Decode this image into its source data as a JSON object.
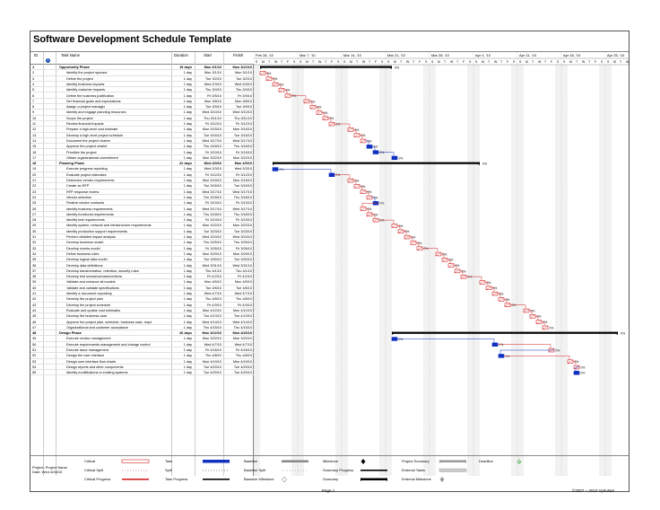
{
  "title": "Software Development Schedule Template",
  "columns": {
    "id": "ID",
    "info": "i",
    "name": "Task Name",
    "duration": "Duration",
    "start": "Start",
    "finish": "Finish"
  },
  "weeks": [
    "Feb 28, '10",
    "Mar 7, '10",
    "Mar 14, '10",
    "Mar 21, '10",
    "Mar 28, '10",
    "Apr 4, '10",
    "Apr 11, '10",
    "Apr 18, '10",
    "Apr 25, '10"
  ],
  "day_letters": [
    "S",
    "M",
    "T",
    "W",
    "T",
    "F",
    "S"
  ],
  "tasks": [
    {
      "id": "1",
      "name": "Opportunity Phase",
      "dur": "15 days",
      "start": "Mon 3/1/10",
      "finish": "Mon 3/22/10",
      "summary": true
    },
    {
      "id": "2",
      "name": "Identify the project sponsor",
      "dur": "1 day",
      "start": "Mon 3/1/10",
      "finish": "Mon 3/1/10"
    },
    {
      "id": "3",
      "name": "Define the project",
      "dur": "1 day",
      "start": "Tue 3/2/10",
      "finish": "Tue 3/2/10"
    },
    {
      "id": "4",
      "name": "Identify business impacts",
      "dur": "1 day",
      "start": "Wed 3/3/10",
      "finish": "Wed 3/3/10"
    },
    {
      "id": "5",
      "name": "Identify customer impacts",
      "dur": "1 day",
      "start": "Thu 3/4/10",
      "finish": "Thu 3/4/10"
    },
    {
      "id": "6",
      "name": "Define the business justification",
      "dur": "1 day",
      "start": "Fri 3/5/10",
      "finish": "Fri 3/5/10"
    },
    {
      "id": "7",
      "name": "Set financial goals and expectations",
      "dur": "1 day",
      "start": "Mon 3/8/10",
      "finish": "Mon 3/8/10"
    },
    {
      "id": "8",
      "name": "Assign a project manager",
      "dur": "1 day",
      "start": "Tue 3/9/10",
      "finish": "Tue 3/9/10"
    },
    {
      "id": "9",
      "name": "Identify and engage planning resources",
      "dur": "1 day",
      "start": "Wed 3/10/10",
      "finish": "Wed 3/10/10"
    },
    {
      "id": "10",
      "name": "Scope the project",
      "dur": "1 day",
      "start": "Thu 3/11/10",
      "finish": "Thu 3/11/10"
    },
    {
      "id": "11",
      "name": "Review financial impacts",
      "dur": "1 day",
      "start": "Fri 3/12/10",
      "finish": "Fri 3/12/10"
    },
    {
      "id": "12",
      "name": "Prepare a high-level cost estimate",
      "dur": "1 day",
      "start": "Mon 3/15/10",
      "finish": "Mon 3/15/10"
    },
    {
      "id": "13",
      "name": "Develop a high-level project schedule",
      "dur": "1 day",
      "start": "Tue 3/16/10",
      "finish": "Tue 3/16/10"
    },
    {
      "id": "14",
      "name": "Document the project charter",
      "dur": "1 day",
      "start": "Wed 3/17/10",
      "finish": "Wed 3/17/10"
    },
    {
      "id": "15",
      "name": "Approve the project charter",
      "dur": "1 day",
      "start": "Thu 3/18/10",
      "finish": "Thu 3/18/10"
    },
    {
      "id": "16",
      "name": "Prioritize the project",
      "dur": "1 day",
      "start": "Fri 3/19/10",
      "finish": "Fri 3/19/10"
    },
    {
      "id": "17",
      "name": "Obtain organizational commitment",
      "dur": "1 day",
      "start": "Mon 3/22/10",
      "finish": "Mon 3/22/10"
    },
    {
      "id": "18",
      "name": "Planning Phase",
      "dur": "22 days",
      "start": "Wed 3/3/10",
      "finish": "Mon 4/5/10",
      "summary": true
    },
    {
      "id": "19",
      "name": "Execute progress reporting",
      "dur": "1 day",
      "start": "Wed 3/3/10",
      "finish": "Wed 3/3/10"
    },
    {
      "id": "20",
      "name": "Evaluate project estimates",
      "dur": "1 day",
      "start": "Fri 3/12/10",
      "finish": "Fri 3/12/10"
    },
    {
      "id": "21",
      "name": "Determine vendor requirements",
      "dur": "1 day",
      "start": "Mon 3/15/10",
      "finish": "Mon 3/15/10"
    },
    {
      "id": "22",
      "name": "Create an RFP",
      "dur": "1 day",
      "start": "Tue 3/16/10",
      "finish": "Tue 3/16/10"
    },
    {
      "id": "23",
      "name": "RFP response review",
      "dur": "1 day",
      "start": "Wed 3/17/10",
      "finish": "Wed 3/17/10"
    },
    {
      "id": "24",
      "name": "Vendor selection",
      "dur": "1 day",
      "start": "Thu 3/18/10",
      "finish": "Thu 3/18/10"
    },
    {
      "id": "25",
      "name": "Finalize vendor contracts",
      "dur": "1 day",
      "start": "Fri 3/19/10",
      "finish": "Fri 3/19/10"
    },
    {
      "id": "26",
      "name": "Identify business requirements",
      "dur": "1 day",
      "start": "Wed 3/17/10",
      "finish": "Wed 3/17/10"
    },
    {
      "id": "27",
      "name": "Identify functional requirements",
      "dur": "1 day",
      "start": "Thu 3/18/10",
      "finish": "Thu 3/18/10"
    },
    {
      "id": "28",
      "name": "Identify test requirements",
      "dur": "1 day",
      "start": "Fri 3/19/10",
      "finish": "Fri 3/19/10"
    },
    {
      "id": "29",
      "name": "Identify system, network and infrastructure requirements",
      "dur": "1 day",
      "start": "Mon 3/22/10",
      "finish": "Mon 3/22/10"
    },
    {
      "id": "30",
      "name": "Identify production support requirements",
      "dur": "1 day",
      "start": "Tue 3/23/10",
      "finish": "Tue 3/23/10"
    },
    {
      "id": "31",
      "name": "Perform detailed impact analysis",
      "dur": "1 day",
      "start": "Wed 3/24/10",
      "finish": "Wed 3/24/10"
    },
    {
      "id": "32",
      "name": "Develop business model",
      "dur": "1 day",
      "start": "Thu 3/25/10",
      "finish": "Thu 3/25/10"
    },
    {
      "id": "33",
      "name": "Develop events model",
      "dur": "1 day",
      "start": "Fri 3/26/10",
      "finish": "Fri 3/26/10"
    },
    {
      "id": "34",
      "name": "Define business rules",
      "dur": "1 day",
      "start": "Mon 3/29/10",
      "finish": "Mon 3/29/10"
    },
    {
      "id": "35",
      "name": "Develop logical data model",
      "dur": "1 day",
      "start": "Tue 3/30/10",
      "finish": "Tue 3/30/10"
    },
    {
      "id": "36",
      "name": "Develop data definitions",
      "dur": "1 day",
      "start": "Wed 3/31/10",
      "finish": "Wed 3/31/10"
    },
    {
      "id": "37",
      "name": "Develop transformation, retention, security rules",
      "dur": "1 day",
      "start": "Thu 4/1/10",
      "finish": "Thu 4/1/10"
    },
    {
      "id": "38",
      "name": "Develop test scenarios/cases/criteria",
      "dur": "1 day",
      "start": "Fri 4/2/10",
      "finish": "Fri 4/2/10"
    },
    {
      "id": "39",
      "name": "Validate and enhance all models",
      "dur": "1 day",
      "start": "Mon 4/5/10",
      "finish": "Mon 4/5/10"
    },
    {
      "id": "40",
      "name": "Validate and validate specifications",
      "dur": "1 day",
      "start": "Tue 4/6/10",
      "finish": "Tue 4/6/10"
    },
    {
      "id": "41",
      "name": "Identify a document repository",
      "dur": "1 day",
      "start": "Wed 4/7/10",
      "finish": "Wed 4/7/10"
    },
    {
      "id": "42",
      "name": "Develop the project plan",
      "dur": "1 day",
      "start": "Thu 4/8/10",
      "finish": "Thu 4/8/10"
    },
    {
      "id": "43",
      "name": "Develop the project schedule",
      "dur": "1 day",
      "start": "Fri 4/9/10",
      "finish": "Fri 4/9/10"
    },
    {
      "id": "44",
      "name": "Evaluate and update cost estimates",
      "dur": "1 day",
      "start": "Mon 4/12/10",
      "finish": "Mon 4/12/10"
    },
    {
      "id": "45",
      "name": "Develop the business case",
      "dur": "1 day",
      "start": "Tue 4/13/10",
      "finish": "Tue 4/13/10"
    },
    {
      "id": "46",
      "name": "Approve the project plan, schedule, business case, requi",
      "dur": "1 day",
      "start": "Wed 4/14/10",
      "finish": "Wed 4/14/10"
    },
    {
      "id": "47",
      "name": "Organizational and customer acceptance",
      "dur": "1 day",
      "start": "Thu 4/15/10",
      "finish": "Thu 4/15/10"
    },
    {
      "id": "48",
      "name": "Design Phase",
      "dur": "26 days",
      "start": "Mon 3/22/10",
      "finish": "Mon 4/26/10",
      "summary": true
    },
    {
      "id": "49",
      "name": "Execute vendor management",
      "dur": "1 day",
      "start": "Mon 3/22/10",
      "finish": "Mon 3/22/10"
    },
    {
      "id": "50",
      "name": "Execute requirements management and change control",
      "dur": "1 day",
      "start": "Wed 4/7/10",
      "finish": "Wed 4/7/10"
    },
    {
      "id": "51",
      "name": "Execute issue management",
      "dur": "1 day",
      "start": "Fri 4/16/10",
      "finish": "Fri 4/16/10"
    },
    {
      "id": "52",
      "name": "Design the user interface",
      "dur": "1 day",
      "start": "Thu 4/8/10",
      "finish": "Thu 4/8/10"
    },
    {
      "id": "53",
      "name": "Design user interface flow charts",
      "dur": "1 day",
      "start": "Mon 4/19/10",
      "finish": "Mon 4/19/10"
    },
    {
      "id": "54",
      "name": "Design reports and other components",
      "dur": "1 day",
      "start": "Tue 4/20/10",
      "finish": "Tue 4/20/10"
    },
    {
      "id": "55",
      "name": "Identify modifications to existing systems",
      "dur": "1 day",
      "start": "Tue 4/20/10",
      "finish": "Tue 4/20/10"
    }
  ],
  "bars": [
    {
      "kind": "summary",
      "day": 1,
      "len": 21,
      "pct": "0%"
    },
    {
      "kind": "crit",
      "day": 1,
      "pct": "0%"
    },
    {
      "kind": "crit",
      "day": 2,
      "pct": "0%"
    },
    {
      "kind": "crit",
      "day": 3,
      "pct": "0%"
    },
    {
      "kind": "crit",
      "day": 4,
      "pct": "0%"
    },
    {
      "kind": "crit",
      "day": 5,
      "pct": "0%"
    },
    {
      "kind": "crit",
      "day": 8,
      "pct": "0%"
    },
    {
      "kind": "crit",
      "day": 9,
      "pct": "0%"
    },
    {
      "kind": "crit",
      "day": 10,
      "pct": "0%"
    },
    {
      "kind": "crit",
      "day": 11,
      "pct": "0%"
    },
    {
      "kind": "crit",
      "day": 12,
      "pct": "0%"
    },
    {
      "kind": "crit",
      "day": 15,
      "pct": "0%"
    },
    {
      "kind": "crit",
      "day": 16,
      "pct": "0%"
    },
    {
      "kind": "crit",
      "day": 17,
      "pct": "0%"
    },
    {
      "kind": "task",
      "day": 18,
      "pct": "0%"
    },
    {
      "kind": "task",
      "day": 19,
      "pct": "0%"
    },
    {
      "kind": "task",
      "day": 22,
      "pct": "0%"
    },
    {
      "kind": "summary",
      "day": 3,
      "len": 33,
      "pct": "0%"
    },
    {
      "kind": "task",
      "day": 3,
      "pct": "0%"
    },
    {
      "kind": "task",
      "day": 12,
      "pct": "0%"
    },
    {
      "kind": "crit",
      "day": 15,
      "pct": "0%"
    },
    {
      "kind": "crit",
      "day": 16,
      "pct": "0%"
    },
    {
      "kind": "crit",
      "day": 17,
      "pct": "0%"
    },
    {
      "kind": "crit",
      "day": 18,
      "pct": "0%"
    },
    {
      "kind": "task",
      "day": 19,
      "pct": "0%"
    },
    {
      "kind": "crit",
      "day": 17,
      "pct": "0%"
    },
    {
      "kind": "crit",
      "day": 18,
      "pct": "0%"
    },
    {
      "kind": "crit",
      "day": 19,
      "pct": "0%"
    },
    {
      "kind": "crit",
      "day": 22,
      "pct": "0%"
    },
    {
      "kind": "crit",
      "day": 23,
      "pct": "0%"
    },
    {
      "kind": "crit",
      "day": 24,
      "pct": "0%"
    },
    {
      "kind": "crit",
      "day": 25,
      "pct": "0%"
    },
    {
      "kind": "crit",
      "day": 26,
      "pct": "0%"
    },
    {
      "kind": "crit",
      "day": 29,
      "pct": "0%"
    },
    {
      "kind": "crit",
      "day": 30,
      "pct": "0%"
    },
    {
      "kind": "crit",
      "day": 31,
      "pct": "0%"
    },
    {
      "kind": "crit",
      "day": 32,
      "pct": "0%"
    },
    {
      "kind": "crit",
      "day": 33,
      "pct": "0%"
    },
    {
      "kind": "crit",
      "day": 36,
      "pct": "0%"
    },
    {
      "kind": "crit",
      "day": 37,
      "pct": "0%"
    },
    {
      "kind": "crit",
      "day": 38,
      "pct": "0%"
    },
    {
      "kind": "crit",
      "day": 39,
      "pct": "0%"
    },
    {
      "kind": "crit",
      "day": 40,
      "pct": "0%"
    },
    {
      "kind": "crit",
      "day": 43,
      "pct": "0%"
    },
    {
      "kind": "crit",
      "day": 44,
      "pct": "0%"
    },
    {
      "kind": "crit",
      "day": 45,
      "pct": "0%"
    },
    {
      "kind": "crit",
      "day": 46,
      "pct": "0%"
    },
    {
      "kind": "summary",
      "day": 22,
      "len": 36,
      "pct": "0%"
    },
    {
      "kind": "task",
      "day": 22,
      "pct": "0%"
    },
    {
      "kind": "task",
      "day": 38,
      "pct": "0%"
    },
    {
      "kind": "crit",
      "day": 47,
      "pct": "0%"
    },
    {
      "kind": "task",
      "day": 39,
      "pct": "0%"
    },
    {
      "kind": "crit",
      "day": 50,
      "pct": "0%"
    },
    {
      "kind": "crit",
      "day": 51,
      "pct": "0%"
    },
    {
      "kind": "task",
      "day": 51,
      "pct": "0%"
    }
  ],
  "legend": {
    "project": "Project: Project Name",
    "date": "Date: Wed 4/28/10",
    "items": [
      {
        "label": "Critical",
        "col": 0,
        "row": 0,
        "sym": "crit"
      },
      {
        "label": "Critical Split",
        "col": 0,
        "row": 1,
        "sym": "split-red"
      },
      {
        "label": "Critical Progress",
        "col": 0,
        "row": 2,
        "sym": "prog-red"
      },
      {
        "label": "Task",
        "col": 1,
        "row": 0,
        "sym": "task-blue"
      },
      {
        "label": "Split",
        "col": 1,
        "row": 1,
        "sym": "split-black"
      },
      {
        "label": "Task Progress",
        "col": 1,
        "row": 2,
        "sym": "prog-black"
      },
      {
        "label": "Baseline",
        "col": 2,
        "row": 0,
        "sym": "base"
      },
      {
        "label": "Baseline Split",
        "col": 2,
        "row": 1,
        "sym": "split-grey"
      },
      {
        "label": "Baseline Milestone",
        "col": 2,
        "row": 2,
        "sym": "ms-open"
      },
      {
        "label": "Milestone",
        "col": 3,
        "row": 0,
        "sym": "ms"
      },
      {
        "label": "Summary Progress",
        "col": 3,
        "row": 1,
        "sym": "sumprog"
      },
      {
        "label": "Summary",
        "col": 3,
        "row": 2,
        "sym": "summary"
      },
      {
        "label": "Project Summary",
        "col": 4,
        "row": 0,
        "sym": "projsum"
      },
      {
        "label": "External Tasks",
        "col": 4,
        "row": 1,
        "sym": "ext"
      },
      {
        "label": "External Milestone",
        "col": 4,
        "row": 2,
        "sym": "extms"
      },
      {
        "label": "Deadline",
        "col": 5,
        "row": 0,
        "sym": "deadline"
      }
    ]
  },
  "page": "Page 1",
  "copyright": "©2007 – 2010 VyrtuNet",
  "colors": {
    "critical": "#d42020",
    "task": "#1030c0",
    "summary": "#000000",
    "link": "#1030c0"
  }
}
